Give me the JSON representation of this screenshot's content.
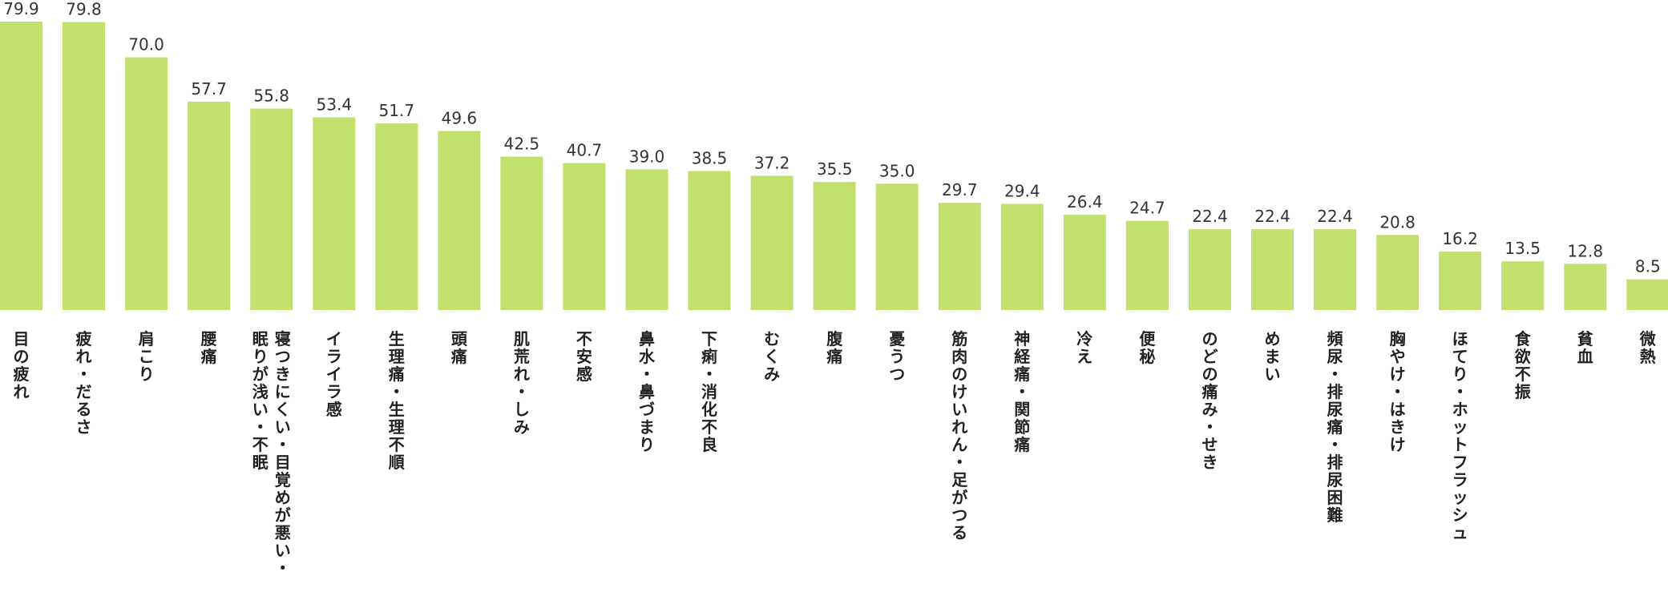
{
  "chart_data": {
    "type": "bar",
    "title": "",
    "xlabel": "",
    "ylabel": "",
    "ylim": [
      0,
      79.9
    ],
    "grid": false,
    "bar_color": "#c3e06f",
    "value_color": "#333333",
    "label_color": "#222222",
    "categories": [
      [
        "目の疲れ"
      ],
      [
        "疲れ・だるさ"
      ],
      [
        "肩こり"
      ],
      [
        "腰痛"
      ],
      [
        "寝つきにくい・目覚めが悪い・",
        "眠りが浅い・不眠"
      ],
      [
        "イライラ感"
      ],
      [
        "生理痛・生理不順"
      ],
      [
        "頭痛"
      ],
      [
        "肌荒れ・しみ"
      ],
      [
        "不安感"
      ],
      [
        "鼻水・鼻づまり"
      ],
      [
        "下痢・消化不良"
      ],
      [
        "むくみ"
      ],
      [
        "腹痛"
      ],
      [
        "憂うつ"
      ],
      [
        "筋肉のけいれん・足がつる"
      ],
      [
        "神経痛・関節痛"
      ],
      [
        "冷え"
      ],
      [
        "便秘"
      ],
      [
        "のどの痛み・せき"
      ],
      [
        "めまい"
      ],
      [
        "頻尿・排尿痛・排尿困難"
      ],
      [
        "胸やけ・はきけ"
      ],
      [
        "ほてり・ホットフラッシュ"
      ],
      [
        "食欲不振"
      ],
      [
        "貧血"
      ],
      [
        "微熱"
      ]
    ],
    "values": [
      79.9,
      79.8,
      70.0,
      57.7,
      55.8,
      53.4,
      51.7,
      49.6,
      42.5,
      40.7,
      39.0,
      38.5,
      37.2,
      35.5,
      35.0,
      29.7,
      29.4,
      26.4,
      24.7,
      22.4,
      22.4,
      22.4,
      20.8,
      16.2,
      13.5,
      12.8,
      8.5
    ]
  }
}
